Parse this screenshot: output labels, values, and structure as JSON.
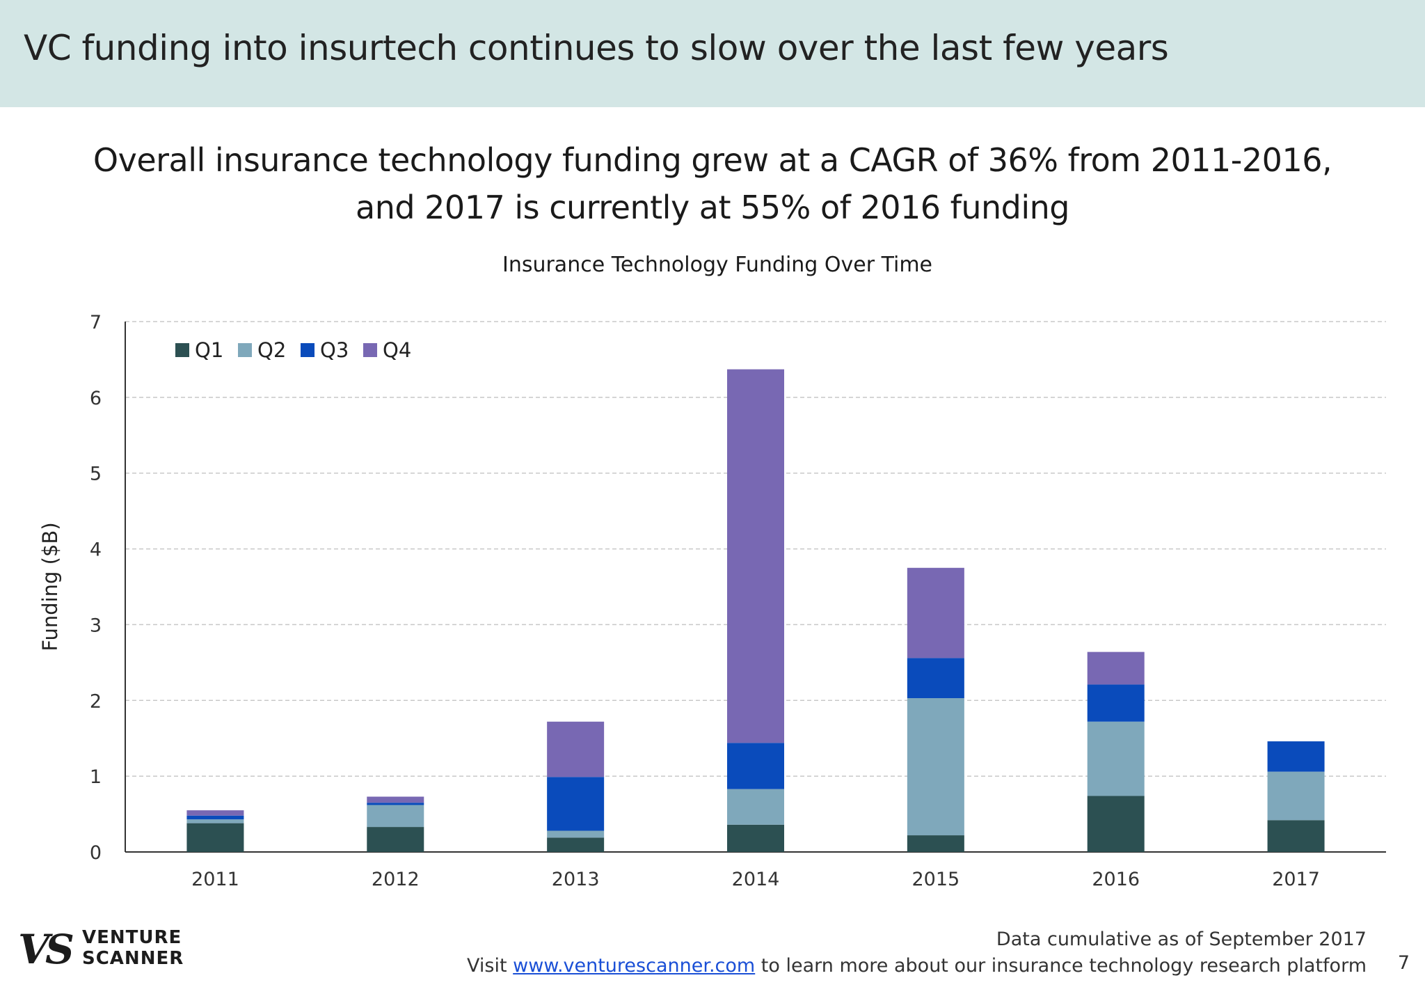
{
  "header": {
    "title": "VC funding into insurtech continues to slow over the last few years"
  },
  "headline": {
    "line1": "Overall insurance technology funding grew at a CAGR of 36% from 2011-2016,",
    "line2": "and 2017 is currently at 55% of 2016 funding"
  },
  "chart_data": {
    "type": "bar",
    "stacked": true,
    "title": "Insurance Technology Funding Over Time",
    "xlabel": "",
    "ylabel": "Funding ($B)",
    "ylim": [
      0,
      7
    ],
    "yticks": [
      "0",
      "1",
      "2",
      "3",
      "4",
      "5",
      "6",
      "7"
    ],
    "grid": true,
    "legend_position": "top-left",
    "categories": [
      "2011",
      "2012",
      "2013",
      "2014",
      "2015",
      "2016",
      "2017"
    ],
    "series": [
      {
        "name": "Q1",
        "color": "#2c5052",
        "values": [
          0.38,
          0.33,
          0.19,
          0.36,
          0.22,
          0.74,
          0.42
        ]
      },
      {
        "name": "Q2",
        "color": "#7fa8bb",
        "values": [
          0.05,
          0.29,
          0.09,
          0.47,
          1.81,
          0.98,
          0.64
        ]
      },
      {
        "name": "Q3",
        "color": "#0a4bbb",
        "values": [
          0.05,
          0.03,
          0.71,
          0.61,
          0.53,
          0.49,
          0.4
        ]
      },
      {
        "name": "Q4",
        "color": "#7868b3",
        "values": [
          0.07,
          0.08,
          0.73,
          4.93,
          1.19,
          0.43,
          0
        ]
      }
    ]
  },
  "footer": {
    "note": "Data cumulative as of September 2017",
    "visit_prefix": "Visit ",
    "link": "www.venturescanner.com",
    "visit_suffix": " to learn more about our insurance technology research platform",
    "page_number": "7"
  },
  "logo": {
    "mark": "VS",
    "line1": "VENTURE",
    "line2": "SCANNER"
  }
}
